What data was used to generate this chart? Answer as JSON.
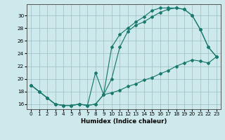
{
  "xlabel": "Humidex (Indice chaleur)",
  "bg_color": "#cde9eb",
  "grid_color": "#9bbfc1",
  "line_color": "#1a7a6e",
  "xlim": [
    -0.5,
    23.5
  ],
  "ylim": [
    15.2,
    31.8
  ],
  "xticks": [
    0,
    1,
    2,
    3,
    4,
    5,
    6,
    7,
    8,
    9,
    10,
    11,
    12,
    13,
    14,
    15,
    16,
    17,
    18,
    19,
    20,
    21,
    22,
    23
  ],
  "yticks": [
    16,
    18,
    20,
    22,
    24,
    26,
    28,
    30
  ],
  "s1_x": [
    0,
    1,
    2,
    3,
    4,
    5,
    6,
    7,
    8,
    9,
    10,
    11,
    12,
    13,
    14,
    15,
    16,
    17,
    18,
    19,
    20,
    21,
    22,
    23
  ],
  "s1_y": [
    19,
    18,
    17,
    16,
    15.8,
    15.8,
    16,
    15.8,
    21,
    17.5,
    25,
    27,
    28,
    29,
    29.8,
    30.8,
    31.2,
    31.2,
    31.2,
    31,
    30,
    27.8,
    25,
    23.5
  ],
  "s2_x": [
    0,
    1,
    2,
    3,
    4,
    5,
    6,
    7,
    8,
    9,
    10,
    11,
    12,
    13,
    14,
    15,
    16,
    17,
    18,
    19,
    20,
    21,
    22,
    23
  ],
  "s2_y": [
    19,
    18,
    17,
    16,
    15.8,
    15.8,
    16,
    15.8,
    16,
    17.5,
    20,
    25,
    27.5,
    28.5,
    29,
    29.8,
    30.5,
    31,
    31.2,
    31,
    30,
    27.8,
    25,
    23.5
  ],
  "s3_x": [
    0,
    1,
    2,
    3,
    4,
    5,
    6,
    7,
    8,
    9,
    10,
    11,
    12,
    13,
    14,
    15,
    16,
    17,
    18,
    19,
    20,
    21,
    22,
    23
  ],
  "s3_y": [
    19,
    18,
    17,
    16,
    15.8,
    15.8,
    16,
    15.8,
    16,
    17.5,
    17.8,
    18.2,
    18.8,
    19.2,
    19.8,
    20.2,
    20.8,
    21.3,
    22,
    22.5,
    23,
    22.8,
    22.5,
    23.5
  ]
}
